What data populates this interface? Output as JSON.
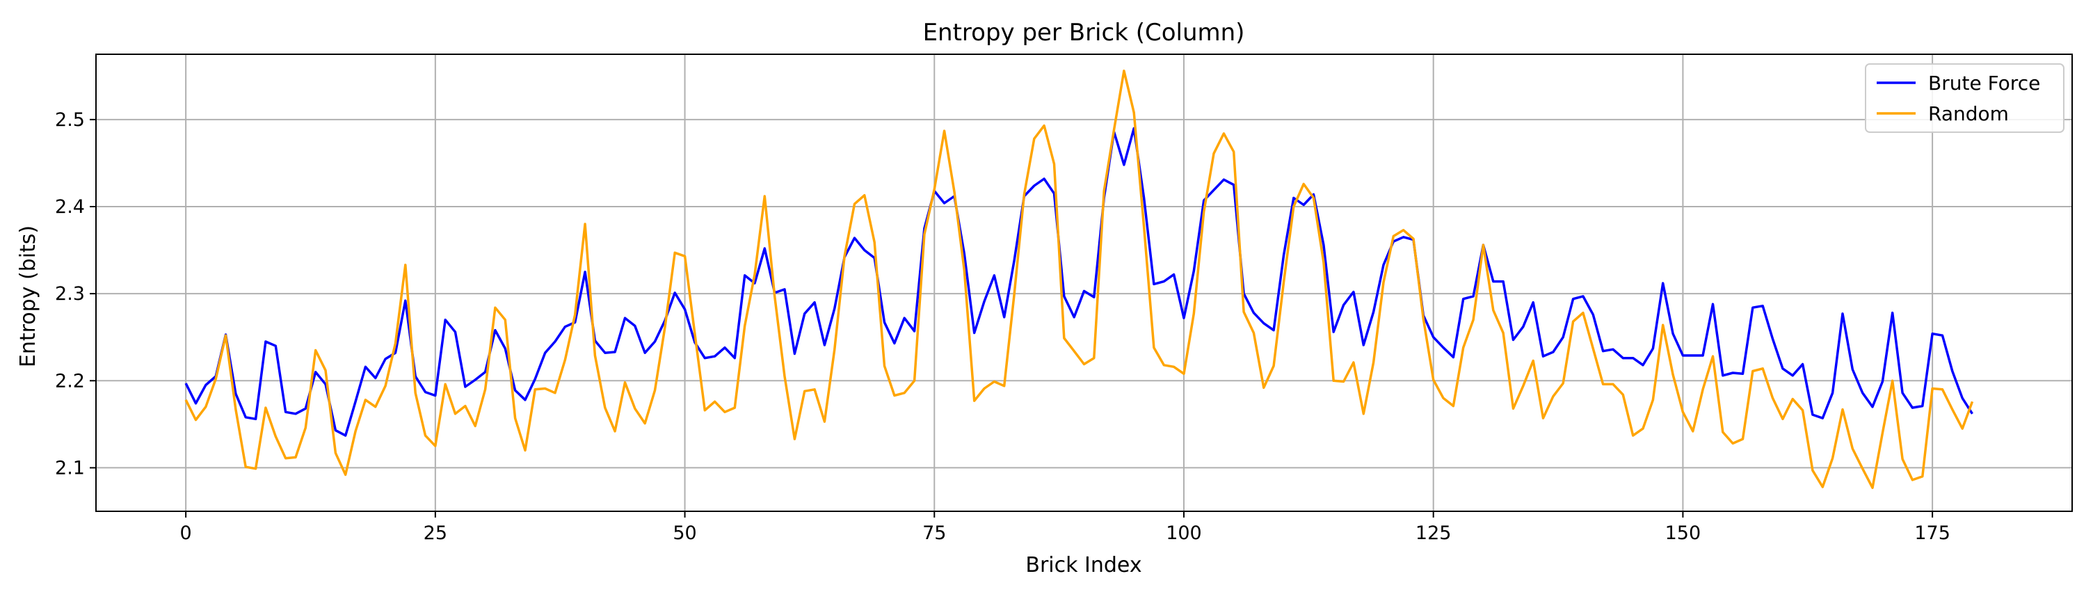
{
  "chart_data": {
    "type": "line",
    "title": "Entropy per Brick (Column)",
    "xlabel": "Brick Index",
    "ylabel": "Entropy (bits)",
    "xlim": [
      -9,
      189
    ],
    "ylim": [
      2.05,
      2.575
    ],
    "x_ticks": [
      0,
      25,
      50,
      75,
      100,
      125,
      150,
      175
    ],
    "y_ticks": [
      2.1,
      2.2,
      2.3,
      2.4,
      2.5
    ],
    "grid": true,
    "legend_position": "top-right",
    "x": [
      0,
      1,
      2,
      3,
      4,
      5,
      6,
      7,
      8,
      9,
      10,
      11,
      12,
      13,
      14,
      15,
      16,
      17,
      18,
      19,
      20,
      21,
      22,
      23,
      24,
      25,
      26,
      27,
      28,
      29,
      30,
      31,
      32,
      33,
      34,
      35,
      36,
      37,
      38,
      39,
      40,
      41,
      42,
      43,
      44,
      45,
      46,
      47,
      48,
      49,
      50,
      51,
      52,
      53,
      54,
      55,
      56,
      57,
      58,
      59,
      60,
      61,
      62,
      63,
      64,
      65,
      66,
      67,
      68,
      69,
      70,
      71,
      72,
      73,
      74,
      75,
      76,
      77,
      78,
      79,
      80,
      81,
      82,
      83,
      84,
      85,
      86,
      87,
      88,
      89,
      90,
      91,
      92,
      93,
      94,
      95,
      96,
      97,
      98,
      99,
      100,
      101,
      102,
      103,
      104,
      105,
      106,
      107,
      108,
      109,
      110,
      111,
      112,
      113,
      114,
      115,
      116,
      117,
      118,
      119,
      120,
      121,
      122,
      123,
      124,
      125,
      126,
      127,
      128,
      129,
      130,
      131,
      132,
      133,
      134,
      135,
      136,
      137,
      138,
      139,
      140,
      141,
      142,
      143,
      144,
      145,
      146,
      147,
      148,
      149,
      150,
      151,
      152,
      153,
      154,
      155,
      156,
      157,
      158,
      159,
      160,
      161,
      162,
      163,
      164,
      165,
      166,
      167,
      168,
      169,
      170,
      171,
      172,
      173,
      174,
      175,
      176,
      177,
      178,
      179
    ],
    "series": [
      {
        "name": "Brute Force",
        "color": "#0000ff",
        "values": [
          2.197,
          2.174,
          2.195,
          2.205,
          2.253,
          2.185,
          2.158,
          2.156,
          2.245,
          2.24,
          2.164,
          2.162,
          2.168,
          2.21,
          2.196,
          2.143,
          2.137,
          2.176,
          2.216,
          2.203,
          2.225,
          2.232,
          2.292,
          2.205,
          2.187,
          2.183,
          2.27,
          2.256,
          2.193,
          2.201,
          2.21,
          2.258,
          2.237,
          2.189,
          2.178,
          2.202,
          2.232,
          2.245,
          2.262,
          2.267,
          2.325,
          2.246,
          2.232,
          2.233,
          2.272,
          2.263,
          2.232,
          2.245,
          2.269,
          2.301,
          2.282,
          2.244,
          2.226,
          2.228,
          2.238,
          2.226,
          2.321,
          2.312,
          2.352,
          2.301,
          2.305,
          2.231,
          2.277,
          2.29,
          2.241,
          2.283,
          2.342,
          2.364,
          2.35,
          2.341,
          2.267,
          2.243,
          2.272,
          2.257,
          2.375,
          2.418,
          2.404,
          2.412,
          2.346,
          2.255,
          2.291,
          2.321,
          2.273,
          2.338,
          2.412,
          2.424,
          2.432,
          2.415,
          2.297,
          2.273,
          2.303,
          2.296,
          2.41,
          2.486,
          2.448,
          2.49,
          2.41,
          2.311,
          2.314,
          2.322,
          2.272,
          2.326,
          2.407,
          2.419,
          2.431,
          2.425,
          2.3,
          2.278,
          2.266,
          2.258,
          2.344,
          2.41,
          2.402,
          2.414,
          2.356,
          2.256,
          2.287,
          2.302,
          2.241,
          2.279,
          2.333,
          2.36,
          2.365,
          2.362,
          2.275,
          2.25,
          2.238,
          2.227,
          2.294,
          2.297,
          2.356,
          2.314,
          2.314,
          2.247,
          2.262,
          2.29,
          2.228,
          2.233,
          2.25,
          2.294,
          2.297,
          2.276,
          2.234,
          2.236,
          2.226,
          2.226,
          2.218,
          2.237,
          2.312,
          2.254,
          2.229,
          2.229,
          2.229,
          2.288,
          2.206,
          2.209,
          2.208,
          2.284,
          2.286,
          2.248,
          2.214,
          2.206,
          2.219,
          2.161,
          2.157,
          2.186,
          2.277,
          2.213,
          2.186,
          2.17,
          2.199,
          2.278,
          2.186,
          2.169,
          2.171,
          2.254,
          2.252,
          2.211,
          2.18,
          2.162
        ]
      },
      {
        "name": "Random",
        "color": "#ffa500",
        "values": [
          2.178,
          2.155,
          2.17,
          2.202,
          2.252,
          2.167,
          2.101,
          2.099,
          2.169,
          2.136,
          2.111,
          2.112,
          2.146,
          2.235,
          2.212,
          2.117,
          2.092,
          2.142,
          2.178,
          2.17,
          2.194,
          2.243,
          2.333,
          2.186,
          2.137,
          2.125,
          2.196,
          2.162,
          2.171,
          2.148,
          2.19,
          2.284,
          2.27,
          2.157,
          2.12,
          2.19,
          2.191,
          2.186,
          2.224,
          2.276,
          2.38,
          2.229,
          2.169,
          2.142,
          2.198,
          2.168,
          2.151,
          2.189,
          2.261,
          2.347,
          2.343,
          2.254,
          2.166,
          2.176,
          2.164,
          2.169,
          2.263,
          2.322,
          2.412,
          2.297,
          2.205,
          2.133,
          2.188,
          2.19,
          2.153,
          2.236,
          2.343,
          2.403,
          2.413,
          2.359,
          2.217,
          2.183,
          2.186,
          2.2,
          2.368,
          2.42,
          2.487,
          2.417,
          2.327,
          2.177,
          2.191,
          2.199,
          2.194,
          2.299,
          2.414,
          2.478,
          2.493,
          2.449,
          2.249,
          2.234,
          2.219,
          2.226,
          2.418,
          2.488,
          2.556,
          2.508,
          2.377,
          2.238,
          2.218,
          2.216,
          2.208,
          2.277,
          2.394,
          2.461,
          2.484,
          2.463,
          2.279,
          2.255,
          2.192,
          2.217,
          2.313,
          2.4,
          2.426,
          2.41,
          2.336,
          2.2,
          2.199,
          2.221,
          2.162,
          2.221,
          2.313,
          2.366,
          2.373,
          2.363,
          2.271,
          2.201,
          2.18,
          2.171,
          2.238,
          2.27,
          2.356,
          2.281,
          2.255,
          2.168,
          2.194,
          2.223,
          2.157,
          2.182,
          2.197,
          2.268,
          2.278,
          2.237,
          2.196,
          2.196,
          2.184,
          2.137,
          2.145,
          2.178,
          2.264,
          2.207,
          2.164,
          2.142,
          2.19,
          2.228,
          2.141,
          2.128,
          2.133,
          2.211,
          2.214,
          2.18,
          2.156,
          2.179,
          2.166,
          2.097,
          2.078,
          2.111,
          2.167,
          2.122,
          2.099,
          2.077,
          2.14,
          2.2,
          2.11,
          2.086,
          2.09,
          2.191,
          2.19,
          2.167,
          2.145,
          2.176
        ]
      }
    ]
  }
}
